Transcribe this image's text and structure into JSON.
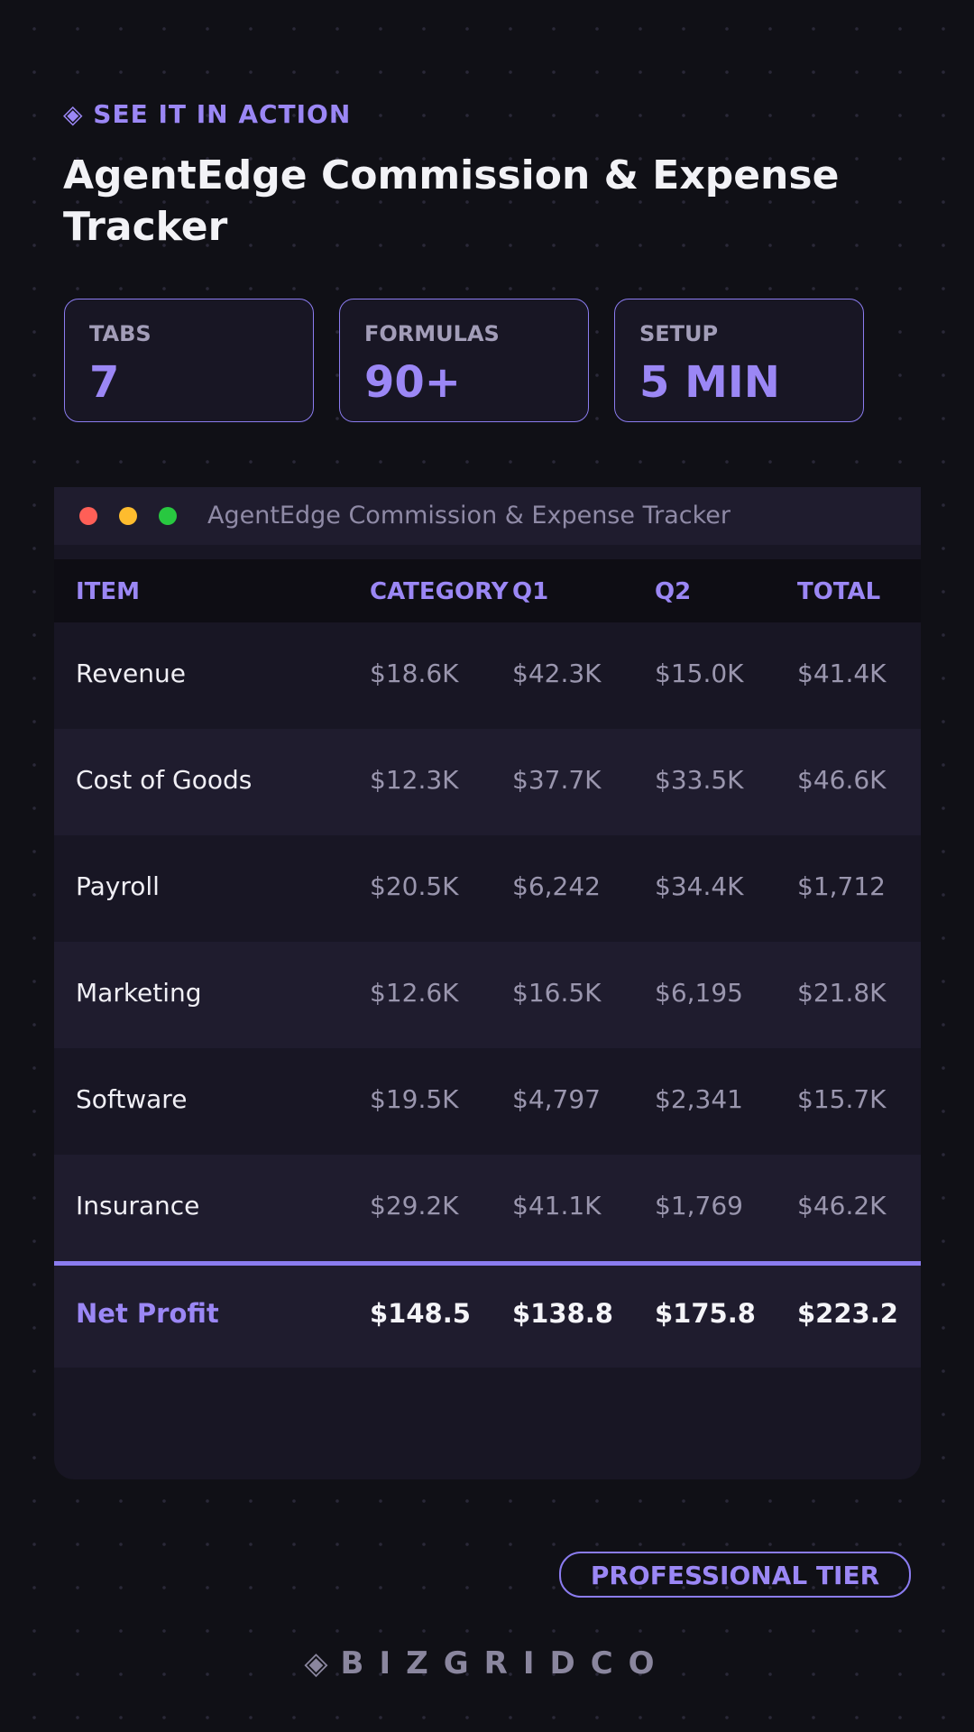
{
  "header": {
    "eyebrow": "◈ SEE IT IN ACTION",
    "title": "AgentEdge Commission & Expense Tracker"
  },
  "stats": [
    {
      "label": "TABS",
      "value": "7"
    },
    {
      "label": "FORMULAS",
      "value": "90+"
    },
    {
      "label": "SETUP",
      "value": "5 MIN"
    }
  ],
  "window": {
    "title": "AgentEdge Commission & Expense Tracker"
  },
  "table": {
    "columns": [
      "ITEM",
      "CATEGORY",
      "Q1",
      "Q2",
      "TOTAL"
    ],
    "rows": [
      [
        "Revenue",
        "$18.6K",
        "$42.3K",
        "$15.0K",
        "$41.4K"
      ],
      [
        "Cost of Goods",
        "$12.3K",
        "$37.7K",
        "$33.5K",
        "$46.6K"
      ],
      [
        "Payroll",
        "$20.5K",
        "$6,242",
        "$34.4K",
        "$1,712"
      ],
      [
        "Marketing",
        "$12.6K",
        "$16.5K",
        "$6,195",
        "$21.8K"
      ],
      [
        "Software",
        "$19.5K",
        "$4,797",
        "$2,341",
        "$15.7K"
      ],
      [
        "Insurance",
        "$29.2K",
        "$41.1K",
        "$1,769",
        "$46.2K"
      ]
    ],
    "total_row": [
      "Net Profit",
      "$148.5",
      "$138.8",
      "$175.8",
      "$223.2"
    ]
  },
  "badge": "PROFESSIONAL TIER",
  "footer": {
    "icon": "◈",
    "brand": "BIZGRIDCO"
  }
}
